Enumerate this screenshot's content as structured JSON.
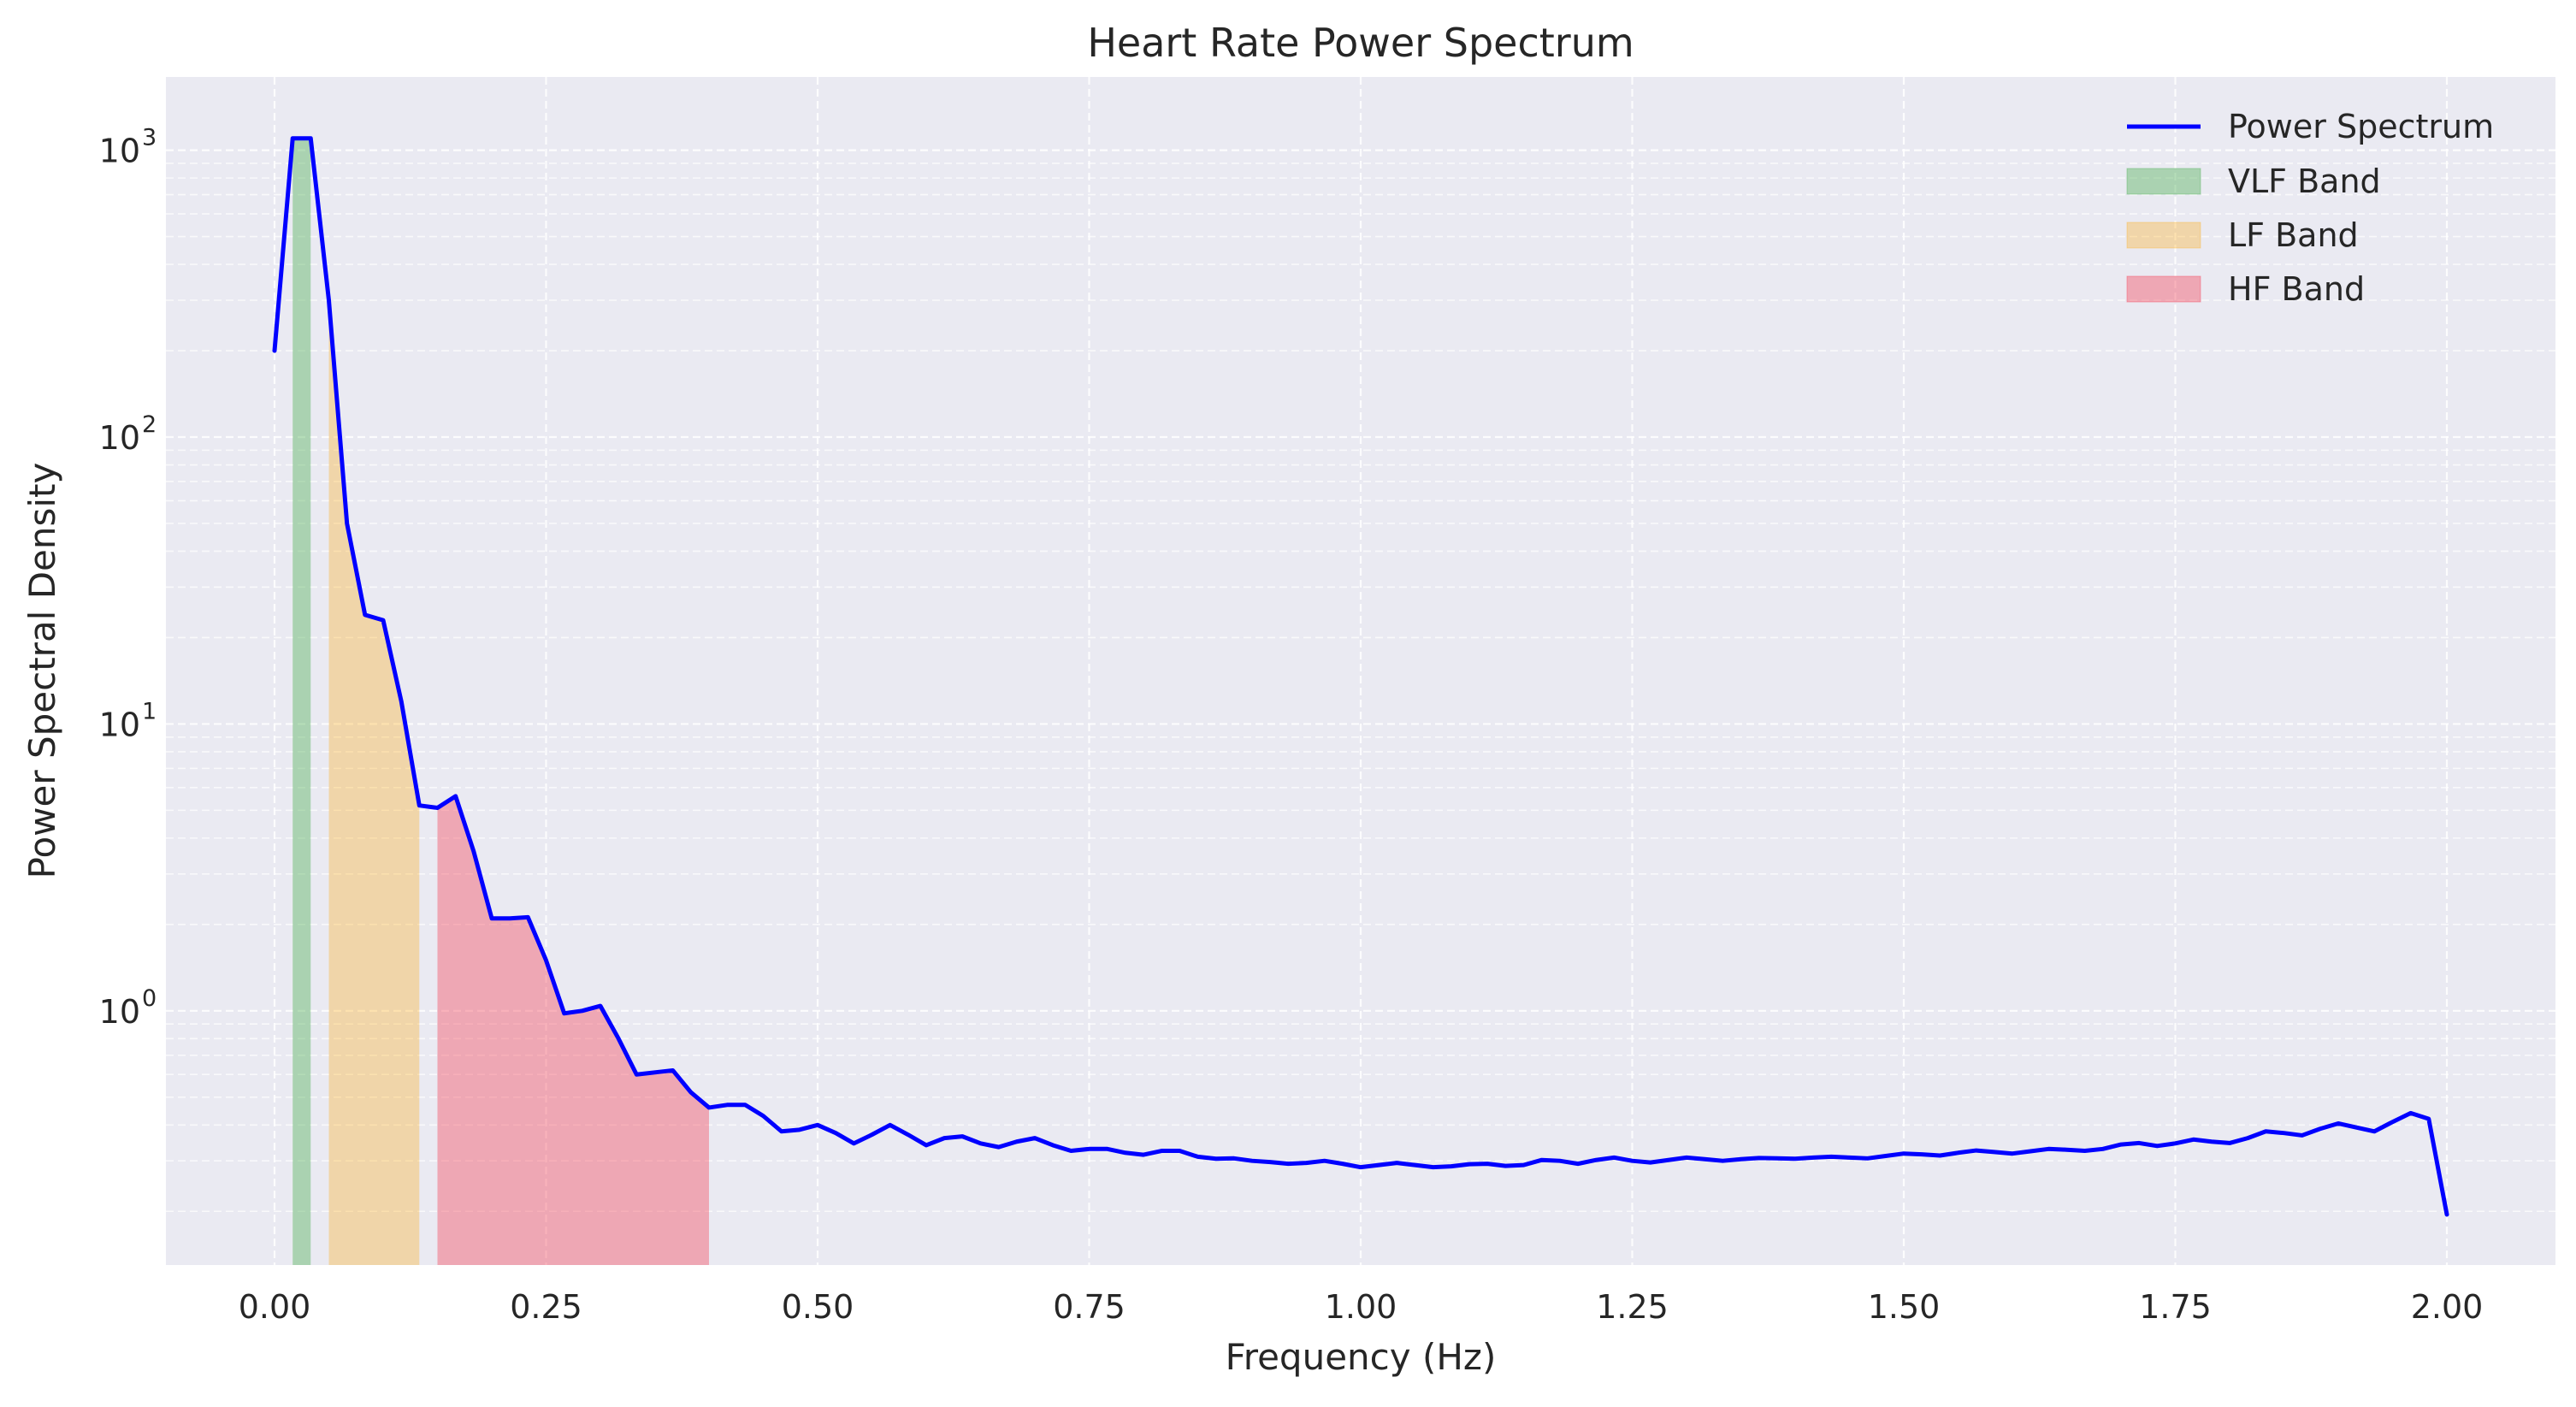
{
  "chart_data": {
    "type": "line",
    "title": "Heart Rate Power Spectrum",
    "xlabel": "Frequency (Hz)",
    "ylabel": "Power Spectral Density",
    "yscale": "log",
    "xlim": [
      -0.1,
      2.1
    ],
    "ylim": [
      0.13,
      1800
    ],
    "xticks": [
      0.0,
      0.25,
      0.5,
      0.75,
      1.0,
      1.25,
      1.5,
      1.75,
      2.0
    ],
    "xtick_labels": [
      "0.00",
      "0.25",
      "0.50",
      "0.75",
      "1.00",
      "1.25",
      "1.50",
      "1.75",
      "2.00"
    ],
    "yticks": [
      1,
      10,
      100,
      1000
    ],
    "ytick_labels": [
      {
        "base": "10",
        "exp": "0"
      },
      {
        "base": "10",
        "exp": "1"
      },
      {
        "base": "10",
        "exp": "2"
      },
      {
        "base": "10",
        "exp": "3"
      }
    ],
    "grid": true,
    "legend_position": "top-right",
    "series": [
      {
        "name": "Power Spectrum",
        "color": "#0000ff",
        "x": [
          0.0,
          0.0167,
          0.0333,
          0.05,
          0.0667,
          0.0833,
          0.1,
          0.1167,
          0.1333,
          0.15,
          0.1667,
          0.1833,
          0.2,
          0.2167,
          0.2333,
          0.25,
          0.2667,
          0.2833,
          0.3,
          0.3167,
          0.3333,
          0.35,
          0.3667,
          0.3833,
          0.4,
          0.4167,
          0.4333,
          0.45,
          0.4667,
          0.4833,
          0.5,
          0.5167,
          0.5333,
          0.55,
          0.5667,
          0.5833,
          0.6,
          0.6167,
          0.6333,
          0.65,
          0.6667,
          0.6833,
          0.7,
          0.7167,
          0.7333,
          0.75,
          0.7667,
          0.7833,
          0.8,
          0.8167,
          0.8333,
          0.85,
          0.8667,
          0.8833,
          0.9,
          0.9167,
          0.9333,
          0.95,
          0.9667,
          0.9833,
          1.0,
          1.0167,
          1.0333,
          1.05,
          1.0667,
          1.0833,
          1.1,
          1.1167,
          1.1333,
          1.15,
          1.1667,
          1.1833,
          1.2,
          1.2167,
          1.2333,
          1.25,
          1.2667,
          1.2833,
          1.3,
          1.3167,
          1.3333,
          1.35,
          1.3667,
          1.3833,
          1.4,
          1.4167,
          1.4333,
          1.45,
          1.4667,
          1.4833,
          1.5,
          1.5167,
          1.5333,
          1.55,
          1.5667,
          1.5833,
          1.6,
          1.6167,
          1.6333,
          1.65,
          1.6667,
          1.6833,
          1.7,
          1.7167,
          1.7333,
          1.75,
          1.7667,
          1.7833,
          1.8,
          1.8167,
          1.8333,
          1.85,
          1.8667,
          1.8833,
          1.9,
          1.9167,
          1.9333,
          1.95,
          1.9667,
          1.9833,
          2.0
        ],
        "values": [
          200,
          1100,
          1100,
          300,
          50,
          24,
          23,
          12,
          5.2,
          5.1,
          5.6,
          3.6,
          2.1,
          2.1,
          2.12,
          1.5,
          0.98,
          1.0,
          1.04,
          0.8,
          0.6,
          0.61,
          0.62,
          0.52,
          0.46,
          0.47,
          0.47,
          0.43,
          0.38,
          0.385,
          0.4,
          0.375,
          0.345,
          0.37,
          0.4,
          0.37,
          0.34,
          0.36,
          0.365,
          0.345,
          0.335,
          0.35,
          0.36,
          0.34,
          0.325,
          0.33,
          0.33,
          0.32,
          0.315,
          0.325,
          0.325,
          0.31,
          0.305,
          0.306,
          0.3,
          0.297,
          0.293,
          0.295,
          0.3,
          0.293,
          0.285,
          0.29,
          0.295,
          0.29,
          0.285,
          0.287,
          0.292,
          0.293,
          0.288,
          0.29,
          0.302,
          0.3,
          0.293,
          0.302,
          0.308,
          0.3,
          0.296,
          0.302,
          0.308,
          0.304,
          0.3,
          0.304,
          0.307,
          0.306,
          0.305,
          0.308,
          0.31,
          0.308,
          0.306,
          0.312,
          0.318,
          0.316,
          0.313,
          0.32,
          0.326,
          0.322,
          0.318,
          0.324,
          0.33,
          0.328,
          0.325,
          0.33,
          0.342,
          0.346,
          0.338,
          0.345,
          0.356,
          0.35,
          0.346,
          0.36,
          0.38,
          0.375,
          0.368,
          0.388,
          0.405,
          0.392,
          0.38,
          0.41,
          0.44,
          0.42,
          0.195
        ]
      }
    ],
    "bands": [
      {
        "name": "VLF Band",
        "color": "#4caf50",
        "opacity": 0.4,
        "x_start": 0.0167,
        "x_end": 0.0333
      },
      {
        "name": "LF Band",
        "color": "#ffa500",
        "opacity": 0.3,
        "x_start": 0.05,
        "x_end": 0.1333
      },
      {
        "name": "HF Band",
        "color": "#f44357",
        "opacity": 0.4,
        "x_start": 0.15,
        "x_end": 0.4
      }
    ],
    "colors": {
      "axes_background": "#eaeaf2",
      "grid": "#ffffff",
      "text": "#262626"
    }
  }
}
